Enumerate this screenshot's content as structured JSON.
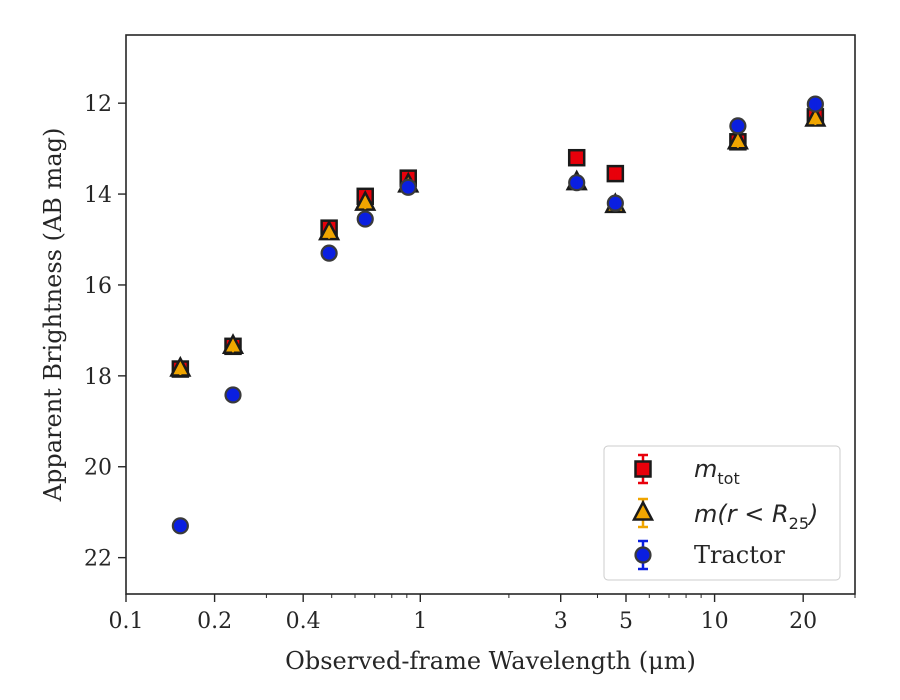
{
  "chart_data": {
    "type": "scatter",
    "xlabel": "Observed-frame Wavelength (μm)",
    "ylabel": "Apparent Brightness (AB mag)",
    "xscale": "log",
    "yaxis_inverted": true,
    "xlim": [
      0.1,
      30
    ],
    "ylim": [
      22.8,
      10.5
    ],
    "xticks": [
      {
        "value": 0.1,
        "label": "0.1"
      },
      {
        "value": 0.2,
        "label": "0.2"
      },
      {
        "value": 0.4,
        "label": "0.4"
      },
      {
        "value": 1,
        "label": "1"
      },
      {
        "value": 3,
        "label": "3"
      },
      {
        "value": 5,
        "label": "5"
      },
      {
        "value": 10,
        "label": "10"
      },
      {
        "value": 20,
        "label": "20"
      }
    ],
    "yticks": [
      {
        "value": 12,
        "label": "12"
      },
      {
        "value": 14,
        "label": "14"
      },
      {
        "value": 16,
        "label": "16"
      },
      {
        "value": 18,
        "label": "18"
      },
      {
        "value": 20,
        "label": "20"
      },
      {
        "value": 22,
        "label": "22"
      }
    ],
    "legend_position": "lower-right",
    "series": [
      {
        "name": "m_tot",
        "legend_main": "m",
        "legend_sub": "tot",
        "marker": "square",
        "color": "#e8000b",
        "x": [
          0.153,
          0.231,
          0.49,
          0.65,
          0.91,
          3.4,
          4.6,
          12.0,
          22.0
        ],
        "y": [
          17.85,
          17.35,
          14.75,
          14.05,
          13.65,
          13.2,
          13.55,
          12.85,
          12.3
        ]
      },
      {
        "name": "m(r < R_25)",
        "legend_main": "m(r < R",
        "legend_sub": "25",
        "legend_close": ")",
        "marker": "triangle",
        "color": "#f0a500",
        "x": [
          0.153,
          0.231,
          0.49,
          0.65,
          0.91,
          3.4,
          4.6,
          12.0,
          22.0
        ],
        "y": [
          17.85,
          17.35,
          14.85,
          14.2,
          13.8,
          13.75,
          14.25,
          12.85,
          12.35
        ]
      },
      {
        "name": "Tractor",
        "legend_main": "Tractor",
        "marker": "circle",
        "color": "#0a1fe0",
        "x": [
          0.153,
          0.231,
          0.49,
          0.65,
          0.91,
          3.4,
          4.6,
          12.0,
          22.0
        ],
        "y": [
          21.3,
          18.42,
          15.3,
          14.55,
          13.85,
          13.75,
          14.2,
          12.5,
          12.02
        ]
      }
    ]
  }
}
